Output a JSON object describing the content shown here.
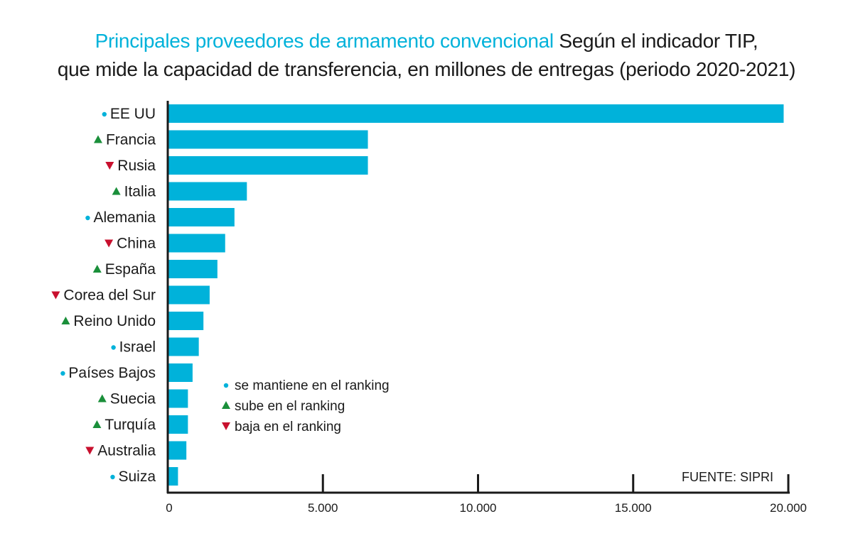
{
  "chart_data": {
    "type": "bar",
    "orientation": "horizontal",
    "title": "Principales proveedores de armamento convencional",
    "subtitle_line1": "Según el indicador TIP,",
    "subtitle_line2": "que mide la capacidad de transferencia, en millones de entregas (periodo 2020-2021)",
    "categories": [
      "EE UU",
      "Francia",
      "Rusia",
      "Italia",
      "Alemania",
      "China",
      "España",
      "Corea del Sur",
      "Reino Unido",
      "Israel",
      "Países Bajos",
      "Suecia",
      "Turquía",
      "Australia",
      "Suiza"
    ],
    "values": [
      19850,
      6450,
      6450,
      2550,
      2150,
      1850,
      1600,
      1350,
      1150,
      1000,
      800,
      650,
      650,
      600,
      330
    ],
    "trend": [
      "same",
      "up",
      "down",
      "up",
      "same",
      "down",
      "up",
      "down",
      "up",
      "same",
      "same",
      "up",
      "up",
      "down",
      "same"
    ],
    "xlim": [
      0,
      20000
    ],
    "xticks": [
      0,
      5000,
      10000,
      15000,
      20000
    ],
    "xtick_labels": [
      "0",
      "5.000",
      "10.000",
      "15.000",
      "20.000"
    ],
    "grid": false,
    "legend_position": "inside-center",
    "legend": [
      {
        "key": "same",
        "label": "se mantiene en el ranking"
      },
      {
        "key": "up",
        "label": "sube en el ranking"
      },
      {
        "key": "down",
        "label": "baja en el ranking"
      }
    ],
    "source": "FUENTE:  SIPRI"
  },
  "colors": {
    "bar": "#00b2da",
    "title": "#00b2da",
    "same": "#00b2da",
    "up": "#1a8f3a",
    "down": "#c8102e",
    "axis": "#1a1a1a"
  }
}
